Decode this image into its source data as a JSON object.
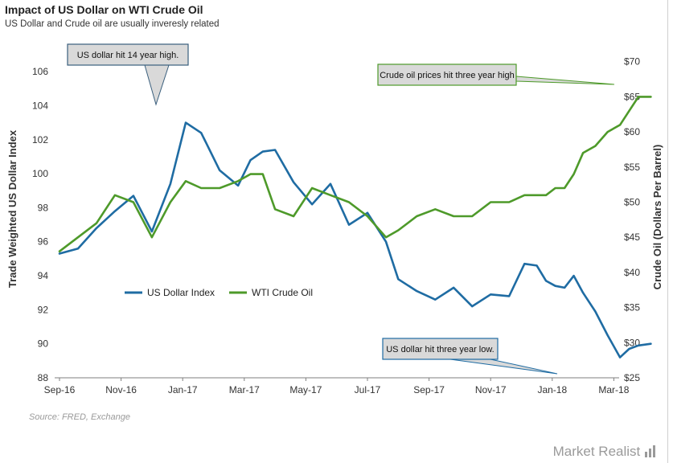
{
  "title": "Impact of US Dollar on WTI Crude Oil",
  "subtitle": "US Dollar and Crude oil are usually inveresly related",
  "source": "Source: FRED, Exchange",
  "brand": "Market Realist",
  "colors": {
    "usd": "#1f6ca3",
    "oil": "#4e9a2a",
    "callout_fill": "#d9d9d9",
    "axis_text": "#333333"
  },
  "chart_data": {
    "type": "line",
    "x_tick_labels": [
      "Sep-16",
      "Nov-16",
      "Jan-17",
      "Mar-17",
      "May-17",
      "Jul-17",
      "Sep-17",
      "Nov-17",
      "Jan-18",
      "Mar-18"
    ],
    "y_left": {
      "label": "Trade Weighted US Dollar Index",
      "ticks": [
        "88",
        "90",
        "92",
        "94",
        "96",
        "98",
        "100",
        "102",
        "104",
        "106"
      ],
      "range": [
        88,
        107
      ]
    },
    "y_right": {
      "label": "Crude Oil (Dollars  Per Barrel)",
      "ticks": [
        "$25",
        "$30",
        "$35",
        "$40",
        "$45",
        "$50",
        "$55",
        "$60",
        "$65",
        "$70"
      ],
      "range": [
        25,
        71
      ]
    },
    "series": [
      {
        "name": "US Dollar Index",
        "axis": "left",
        "x": [
          0,
          0.3,
          0.6,
          0.9,
          1.2,
          1.5,
          1.8,
          2.05,
          2.3,
          2.6,
          2.9,
          3.1,
          3.3,
          3.5,
          3.8,
          4.1,
          4.4,
          4.7,
          5.0,
          5.3,
          5.5,
          5.8,
          6.1,
          6.4,
          6.7,
          7.0,
          7.3,
          7.55,
          7.75,
          7.9,
          8.05,
          8.2,
          8.35,
          8.5,
          8.7,
          8.9,
          9.1,
          9.25,
          9.4,
          9.6
        ],
        "values": [
          95.3,
          95.6,
          96.8,
          97.8,
          98.7,
          96.6,
          99.4,
          103.0,
          102.4,
          100.2,
          99.3,
          100.8,
          101.3,
          101.4,
          99.5,
          98.2,
          99.4,
          97.0,
          97.7,
          96.0,
          93.8,
          93.1,
          92.6,
          93.3,
          92.2,
          92.9,
          92.8,
          94.7,
          94.6,
          93.7,
          93.4,
          93.3,
          94.0,
          93.0,
          91.9,
          90.5,
          89.2,
          89.7,
          89.9,
          90.0
        ]
      },
      {
        "name": "WTI Crude Oil",
        "axis": "right",
        "x": [
          0,
          0.3,
          0.6,
          0.9,
          1.2,
          1.5,
          1.8,
          2.05,
          2.3,
          2.6,
          2.9,
          3.1,
          3.3,
          3.5,
          3.8,
          4.1,
          4.4,
          4.7,
          5.0,
          5.3,
          5.5,
          5.8,
          6.1,
          6.4,
          6.7,
          7.0,
          7.3,
          7.55,
          7.75,
          7.9,
          8.05,
          8.2,
          8.35,
          8.5,
          8.7,
          8.9,
          9.1,
          9.25,
          9.4,
          9.6
        ],
        "values": [
          43,
          45,
          47,
          51,
          50,
          45,
          50,
          53,
          52,
          52,
          53,
          54,
          54,
          49,
          48,
          52,
          51,
          50,
          48,
          45,
          46,
          48,
          49,
          48,
          48,
          50,
          50,
          51,
          51,
          51,
          52,
          52,
          54,
          57,
          58,
          60,
          61,
          63,
          65,
          65
        ]
      }
    ],
    "legend": {
      "placement": "center-left",
      "entries": [
        "US Dollar Index",
        "WTI Crude Oil"
      ]
    },
    "annotations": [
      "US dollar hit 14 year high.",
      "Crude oil prices hit three year high",
      "US dollar hit three year low."
    ],
    "grid": false
  }
}
